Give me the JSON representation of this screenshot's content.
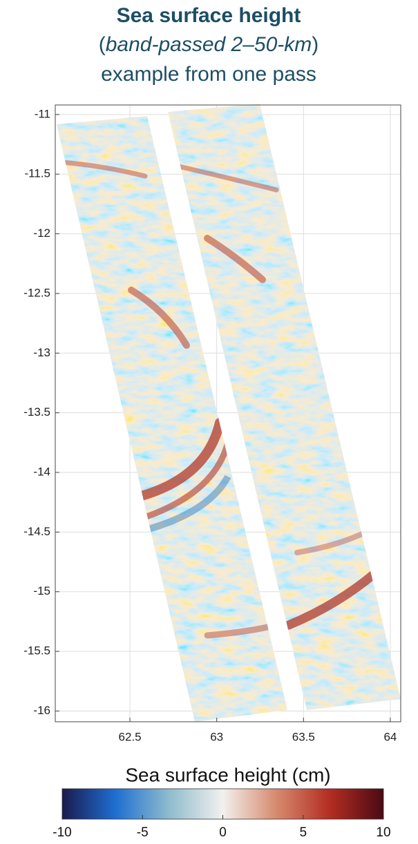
{
  "chart_data": {
    "type": "map",
    "title": "Sea surface height",
    "subtitle_parts": [
      "(",
      "band-passed 2–50-km",
      ")"
    ],
    "subtitle2": "example from one pass",
    "xlim": [
      62.07,
      64.06
    ],
    "ylim": [
      -16.09,
      -10.92
    ],
    "xticks": [
      62.5,
      63,
      63.5,
      64
    ],
    "yticks": [
      -11,
      -11.5,
      -12,
      -12.5,
      -13,
      -13.5,
      -14,
      -14.5,
      -15,
      -15.5,
      -16
    ],
    "grid": true,
    "colorbar": {
      "label": "Sea surface height (cm)",
      "lim": [
        -10,
        10
      ],
      "ticks": [
        -10,
        -5,
        0,
        5,
        10
      ],
      "colors": [
        "#1a1a4e",
        "#1f6fd1",
        "#8fbccd",
        "#f2f0ee",
        "#d68a6e",
        "#b32d22",
        "#4a0a14"
      ]
    }
  }
}
